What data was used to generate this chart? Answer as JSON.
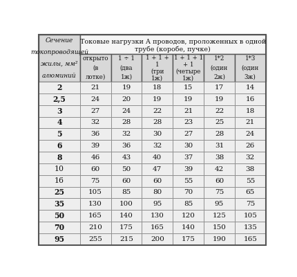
{
  "title_line1": "Токовые нагрузки А проводов, проложенных в одной",
  "title_line2": "трубе (коробе, пучке)",
  "col0_header_lines": [
    "Сечение",
    "токопроводящей",
    "жилы, мм²",
    "алюминий"
  ],
  "col_headers": [
    [
      "открыто",
      "(в",
      "лотке)"
    ],
    [
      "1 ÷ 1",
      "(два",
      "1ж)"
    ],
    [
      "1 + 1 +",
      "1",
      "(три",
      "1ж)"
    ],
    [
      "1 + 1 + 1",
      "+ 1",
      "(четыре",
      "1ж)"
    ],
    [
      "1*2",
      "(один",
      "2ж)"
    ],
    [
      "1*3",
      "(один",
      "3ж)"
    ]
  ],
  "rows": [
    [
      "2",
      21,
      19,
      18,
      15,
      17,
      14
    ],
    [
      "2,5",
      24,
      20,
      19,
      19,
      19,
      16
    ],
    [
      "3",
      27,
      24,
      22,
      21,
      22,
      18
    ],
    [
      "4",
      32,
      28,
      28,
      23,
      25,
      21
    ],
    [
      "5",
      36,
      32,
      30,
      27,
      28,
      24
    ],
    [
      "6",
      39,
      36,
      32,
      30,
      31,
      26
    ],
    [
      "8",
      46,
      43,
      40,
      37,
      38,
      32
    ],
    [
      "10",
      60,
      50,
      47,
      39,
      42,
      38
    ],
    [
      "16",
      75,
      60,
      60,
      55,
      60,
      55
    ],
    [
      "25",
      105,
      85,
      80,
      70,
      75,
      65
    ],
    [
      "35",
      130,
      100,
      95,
      85,
      95,
      75
    ],
    [
      "50",
      165,
      140,
      130,
      120,
      125,
      105
    ],
    [
      "70",
      210,
      175,
      165,
      140,
      150,
      135
    ],
    [
      "95",
      255,
      215,
      200,
      175,
      190,
      165
    ]
  ],
  "bold_section_col": [
    "2",
    "2,5",
    "3",
    "4",
    "5",
    "6",
    "8",
    "25",
    "35",
    "50",
    "70",
    "95"
  ],
  "bg_header": "#d8d8d8",
  "bg_title": "#f5f5f5",
  "bg_row": "#eeeeee",
  "border_outer": "#555555",
  "border_inner": "#888888",
  "text_color": "#111111"
}
